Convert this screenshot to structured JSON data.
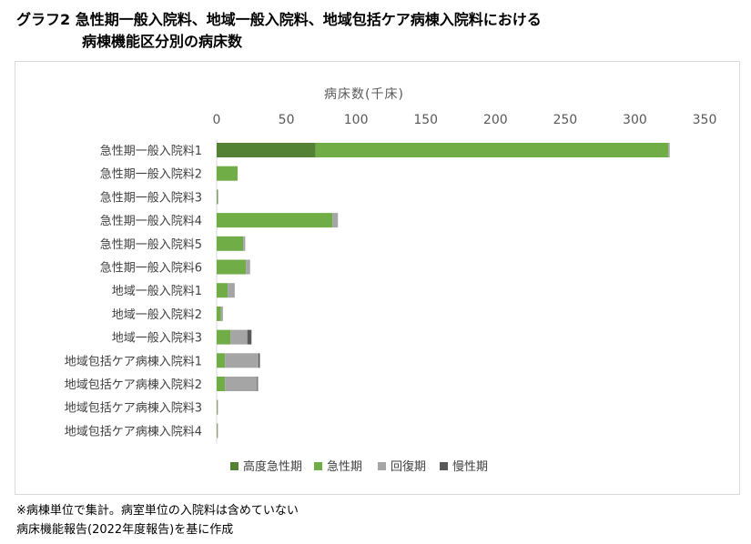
{
  "header": {
    "title_line1": "グラフ2  急性期一般入院料、地域一般入院料、地域包括ケア病棟入院料における",
    "title_line2": "病棟機能区分別の病床数"
  },
  "notes": {
    "line1": "※病棟単位で集計。病室単位の入院料は含めていない",
    "line2": "病床機能報告(2022年度報告)を基に作成"
  },
  "chart_data": {
    "type": "bar",
    "orientation": "horizontal",
    "stacked": true,
    "title": "",
    "xlabel": "病床数(千床)",
    "ylabel": "",
    "xlim": [
      0,
      350
    ],
    "x_ticks": [
      0,
      50,
      100,
      150,
      200,
      250,
      300,
      350
    ],
    "x_tick_labels": [
      "0",
      "50",
      "100",
      "150",
      "200",
      "250",
      "300",
      "350"
    ],
    "x_axis_position": "top",
    "grid": false,
    "legend_position": "bottom",
    "categories": [
      "急性期一般入院料1",
      "急性期一般入院料2",
      "急性期一般入院料3",
      "急性期一般入院料4",
      "急性期一般入院料5",
      "急性期一般入院料6",
      "地域一般入院料1",
      "地域一般入院料2",
      "地域一般入院料3",
      "地域包括ケア病棟入院料1",
      "地域包括ケア病棟入院料2",
      "地域包括ケア病棟入院料3",
      "地域包括ケア病棟入院料4"
    ],
    "series": [
      {
        "name": "高度急性期",
        "color": "#548235",
        "values": [
          71,
          0,
          0,
          0,
          0,
          0,
          0,
          0,
          0,
          0,
          0,
          0,
          0
        ]
      },
      {
        "name": "急性期",
        "color": "#70ad47",
        "values": [
          253,
          15,
          0.5,
          83,
          19,
          21,
          8,
          3,
          10,
          6,
          6,
          0.3,
          0.3
        ]
      },
      {
        "name": "回復期",
        "color": "#a5a5a5",
        "values": [
          1,
          0,
          0.3,
          4,
          1.5,
          3,
          5,
          1.5,
          12,
          24,
          23,
          0.3,
          0.3
        ]
      },
      {
        "name": "慢性期",
        "color": "#595959",
        "values": [
          0,
          0,
          0,
          0,
          0,
          0,
          0,
          0,
          3,
          1,
          0.5,
          0,
          0
        ]
      }
    ]
  }
}
